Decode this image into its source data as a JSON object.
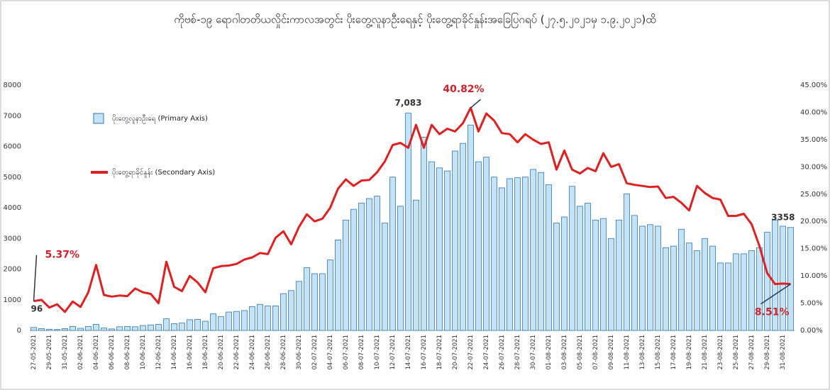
{
  "chart_data": {
    "type": "bar-line",
    "title": "ကိုဗစ်-၁၉ ရောဂါတတိယလှိုင်းကာလအတွင်း ပိုးတွေ့လူနာဦးရေနှင့် ပိုးတွေ့ရာခိုင်နှုန်းအခြေပြဂရပ် (၂၇.၅.၂၀၂၁မှ ၁.၉.၂၀၂၁)ထိ",
    "categories": [
      "27-05-2021",
      null,
      "29-05-2021",
      null,
      "31-05-2021",
      null,
      "02-06-2021",
      null,
      "04-06-2021",
      null,
      "06-06-2021",
      null,
      "08-06-2021",
      null,
      "10-06-2021",
      null,
      "12-06-2021",
      null,
      "14-06-2021",
      null,
      "16-06-2021",
      null,
      "18-06-2021",
      null,
      "20-06-2021",
      null,
      "22-06-2021",
      null,
      "24-06-2021",
      null,
      "26-06-2021",
      null,
      "28-06-2021",
      null,
      "30-06-2021",
      null,
      "02-07-2021",
      null,
      "04-07-2021",
      null,
      "06-07-2021",
      null,
      "08-07-2021",
      null,
      "10-07-2021",
      null,
      "12-07-2021",
      null,
      "14-07-2021",
      null,
      "16-07-2021",
      null,
      "18-07-2021",
      null,
      "20-07-2021",
      null,
      "22-07-2021",
      null,
      "24-07-2021",
      null,
      "26-07-2021",
      null,
      "28-07-2021",
      null,
      "30-07-2021",
      null,
      "01-08-2021",
      null,
      "03-08-2021",
      null,
      "05-08-2021",
      null,
      "07-08-2021",
      null,
      "09-08-2021",
      null,
      "11-08-2021",
      null,
      "13-08-2021",
      null,
      "15-08-2021",
      null,
      "17-08-2021",
      null,
      "19-08-2021",
      null,
      "21-08-2021",
      null,
      "23-08-2021",
      null,
      "25-08-2021",
      null,
      "27-08-2021",
      null,
      "29-08-2021",
      null,
      "31-08-2021",
      null
    ],
    "series": [
      {
        "name": "ပိုးတွေ့လူနာဦးရေ (Primary Axis)",
        "type": "bar",
        "color": "#c5e3f7",
        "edge_color": "#2e75b6",
        "values": [
          96,
          60,
          40,
          30,
          60,
          130,
          70,
          130,
          200,
          80,
          50,
          120,
          130,
          120,
          160,
          180,
          200,
          380,
          220,
          240,
          350,
          360,
          300,
          540,
          450,
          600,
          620,
          650,
          780,
          850,
          800,
          800,
          1200,
          1300,
          1600,
          2050,
          1850,
          1850,
          2300,
          2950,
          3600,
          3950,
          4150,
          4300,
          4380,
          3500,
          5000,
          4050,
          7083,
          4250,
          6300,
          5500,
          5300,
          5200,
          5850,
          6100,
          6700,
          5500,
          5650,
          5000,
          4650,
          4950,
          4980,
          5000,
          5250,
          5150,
          4750,
          3500,
          3700,
          4700,
          4050,
          4150,
          3600,
          3650,
          3000,
          3600,
          4450,
          3750,
          3400,
          3450,
          3400,
          2700,
          2750,
          3300,
          2850,
          2600,
          3000,
          2750,
          2200,
          2200,
          2500,
          2500,
          2600,
          2700,
          3200,
          3600,
          3400,
          3358
        ],
        "value_labels": [
          "96",
          null,
          null,
          null,
          null,
          null,
          null,
          null,
          null,
          null,
          null,
          null,
          null,
          null,
          null,
          null,
          null,
          null,
          null,
          null,
          null,
          null,
          null,
          null,
          null,
          null,
          null,
          null,
          null,
          null,
          null,
          null,
          null,
          null,
          null,
          null,
          null,
          null,
          null,
          null,
          null,
          null,
          null,
          null,
          null,
          null,
          null,
          null,
          "7,083",
          null,
          null,
          null,
          null,
          null,
          null,
          null,
          null,
          null,
          null,
          null,
          null,
          null,
          null,
          null,
          null,
          null,
          null,
          null,
          null,
          null,
          null,
          null,
          null,
          null,
          null,
          null,
          null,
          null,
          null,
          null,
          null,
          null,
          null,
          null,
          null,
          null,
          null,
          null,
          null,
          null,
          null,
          null,
          null,
          null,
          null,
          null,
          null,
          "3358"
        ]
      },
      {
        "name": "ပိုးတွေ့ရာခိုင်နှုန်း (Secondary Axis)",
        "type": "line",
        "axis": "y2",
        "color": "#e02020",
        "values": [
          5.37,
          5.6,
          4.2,
          4.8,
          3.4,
          5.3,
          4.3,
          7,
          12,
          6.5,
          6.2,
          6.4,
          6.3,
          7.7,
          7,
          6.7,
          5,
          12.6,
          8,
          7.2,
          10,
          8.8,
          7,
          11.4,
          11.8,
          11.9,
          12.2,
          13,
          13.4,
          14.2,
          14,
          17,
          18.2,
          15.8,
          19,
          21.3,
          20,
          20.5,
          22.5,
          26,
          27.7,
          26.5,
          27.5,
          27.6,
          29,
          31,
          34,
          34.4,
          33.5,
          37.7,
          33.5,
          37.7,
          36,
          37,
          36.5,
          38,
          40.82,
          36.5,
          39.8,
          38.5,
          36.2,
          36,
          34.5,
          36,
          35,
          34.2,
          34.5,
          29.5,
          33,
          29.5,
          28.8,
          29.8,
          29.2,
          32.5,
          30,
          30.5,
          27,
          26.7,
          26.5,
          26.3,
          26.4,
          24.3,
          24.5,
          23.4,
          22,
          26.5,
          25.2,
          24.3,
          24,
          21,
          21,
          21.4,
          19.5,
          15.5,
          10.5,
          8.5,
          8.6,
          8.51
        ],
        "value_labels": [
          "5.37%",
          null,
          null,
          null,
          null,
          null,
          null,
          null,
          null,
          null,
          null,
          null,
          null,
          null,
          null,
          null,
          null,
          null,
          null,
          null,
          null,
          null,
          null,
          null,
          null,
          null,
          null,
          null,
          null,
          null,
          null,
          null,
          null,
          null,
          null,
          null,
          null,
          null,
          null,
          null,
          null,
          null,
          null,
          null,
          null,
          null,
          null,
          null,
          null,
          null,
          null,
          null,
          null,
          null,
          null,
          null,
          "40.82%",
          null,
          null,
          null,
          null,
          null,
          null,
          null,
          null,
          null,
          null,
          null,
          null,
          null,
          null,
          null,
          null,
          null,
          null,
          null,
          null,
          null,
          null,
          null,
          null,
          null,
          null,
          null,
          null,
          null,
          null,
          null,
          null,
          null,
          null,
          null,
          null,
          null,
          null,
          null,
          null,
          "8.51%"
        ]
      }
    ],
    "ylim": [
      0,
      8000
    ],
    "yticks": [
      0,
      1000,
      2000,
      3000,
      4000,
      5000,
      6000,
      7000,
      8000
    ],
    "y2lim": [
      0,
      45
    ],
    "y2ticks": [
      {
        "value": 0,
        "label": "0.00%"
      },
      {
        "value": 5,
        "label": "5.00%"
      },
      {
        "value": 10,
        "label": "10.00%"
      },
      {
        "value": 15,
        "label": "15.00%"
      },
      {
        "value": 20,
        "label": "20.00%"
      },
      {
        "value": 25,
        "label": "25.00%"
      },
      {
        "value": 30,
        "label": "30.00%"
      },
      {
        "value": 35,
        "label": "35.00%"
      },
      {
        "value": 40,
        "label": "40.00%"
      },
      {
        "value": 45,
        "label": "45.00%"
      }
    ],
    "legend": "upper left"
  }
}
